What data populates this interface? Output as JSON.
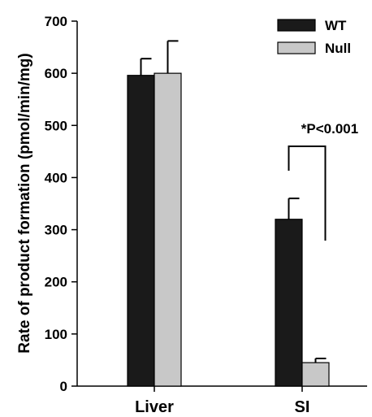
{
  "chart_data": {
    "type": "bar",
    "title": "",
    "xlabel": "",
    "ylabel": "Rate of product formation (pmol/min/mg)",
    "categories": [
      "Liver",
      "SI"
    ],
    "series": [
      {
        "name": "WT",
        "color": "#1a1a1a",
        "values": [
          596,
          320
        ],
        "errors": [
          32,
          40
        ]
      },
      {
        "name": "Null",
        "color": "#c8c8c8",
        "values": [
          600,
          45
        ],
        "errors": [
          62,
          8
        ]
      }
    ],
    "ylim": [
      0,
      700
    ],
    "yticks": [
      0,
      100,
      200,
      300,
      400,
      500,
      600,
      700
    ],
    "grid": false,
    "legend": "top-right",
    "annotation": {
      "text": "*P<0.001",
      "category": "SI"
    }
  }
}
